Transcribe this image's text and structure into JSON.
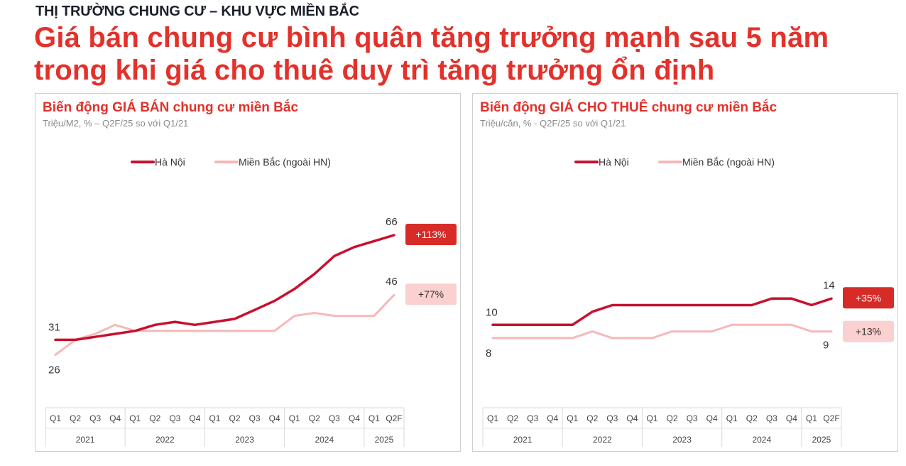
{
  "header": {
    "kicker": "THỊ TRƯỜNG CHUNG CƯ – KHU VỰC MIỀN BẮC",
    "headline_line1": "Giá bán chung cư bình quân tăng trưởng mạnh sau 5 năm",
    "headline_line2": "trong khi giá cho thuê duy trì tăng trưởng ổn định"
  },
  "colors": {
    "accent": "#e3312b",
    "hanoi": "#c8102e",
    "north": "#f7b8b8",
    "badge_light": "#fbd0d0"
  },
  "chart_data": [
    {
      "type": "line",
      "title": "Biến động GIÁ BÁN chung cư miền Bắc",
      "subtitle": "Triệu/M2, % – Q2F/25 so với Q1/21",
      "legend_placement": "top",
      "x": [
        "Q1",
        "Q2",
        "Q3",
        "Q4",
        "Q1",
        "Q2",
        "Q3",
        "Q4",
        "Q1",
        "Q2",
        "Q3",
        "Q4",
        "Q1",
        "Q2",
        "Q3",
        "Q4",
        "Q1",
        "Q2F"
      ],
      "years": [
        {
          "label": "2021",
          "start": 0,
          "end": 3
        },
        {
          "label": "2022",
          "start": 4,
          "end": 7
        },
        {
          "label": "2023",
          "start": 8,
          "end": 11
        },
        {
          "label": "2024",
          "start": 12,
          "end": 15
        },
        {
          "label": "2025",
          "start": 16,
          "end": 17
        }
      ],
      "ylim": [
        14,
        80
      ],
      "series": [
        {
          "name": "Hà Nội",
          "values": [
            31,
            31,
            32,
            33,
            34,
            36,
            37,
            36,
            37,
            38,
            41,
            44,
            48,
            53,
            59,
            62,
            64,
            66
          ]
        },
        {
          "name": "Miền Bắc (ngoài HN)",
          "values": [
            26,
            31,
            33,
            36,
            34,
            34,
            34,
            34,
            34,
            34,
            34,
            34,
            39,
            40,
            39,
            39,
            39,
            46
          ]
        }
      ],
      "labels": {
        "start_top": "31",
        "start_bottom": "26",
        "end_top": "66",
        "end_bottom": "46"
      },
      "badges": [
        {
          "text": "+113%",
          "style": "dark"
        },
        {
          "text": "+77%",
          "style": "light"
        }
      ]
    },
    {
      "type": "line",
      "title": "Biến động GIÁ CHO THUÊ chung cư miền Bắc",
      "subtitle": "Triệu/căn, % - Q2F/25 so với Q1/21",
      "legend_placement": "top",
      "x": [
        "Q1",
        "Q2",
        "Q3",
        "Q4",
        "Q1",
        "Q2",
        "Q3",
        "Q4",
        "Q1",
        "Q2",
        "Q3",
        "Q4",
        "Q1",
        "Q2",
        "Q3",
        "Q4",
        "Q1",
        "Q2F"
      ],
      "years": [
        {
          "label": "2021",
          "start": 0,
          "end": 3
        },
        {
          "label": "2022",
          "start": 4,
          "end": 7
        },
        {
          "label": "2023",
          "start": 8,
          "end": 11
        },
        {
          "label": "2024",
          "start": 12,
          "end": 15
        },
        {
          "label": "2025",
          "start": 16,
          "end": 17
        }
      ],
      "ylim": [
        0,
        30
      ],
      "series": [
        {
          "name": "Hà Nội",
          "values": [
            10,
            10,
            10,
            10,
            10,
            12,
            13,
            13,
            13,
            13,
            13,
            13,
            13,
            13,
            14,
            14,
            13,
            14
          ]
        },
        {
          "name": "Miền Bắc (ngoài HN)",
          "values": [
            8,
            8,
            8,
            8,
            8,
            9,
            8,
            8,
            8,
            9,
            9,
            9,
            10,
            10,
            10,
            10,
            9,
            9
          ]
        }
      ],
      "labels": {
        "start_top": "10",
        "start_bottom": "8",
        "end_top": "14",
        "end_bottom": "9"
      },
      "badges": [
        {
          "text": "+35%",
          "style": "dark"
        },
        {
          "text": "+13%",
          "style": "light"
        }
      ]
    }
  ]
}
